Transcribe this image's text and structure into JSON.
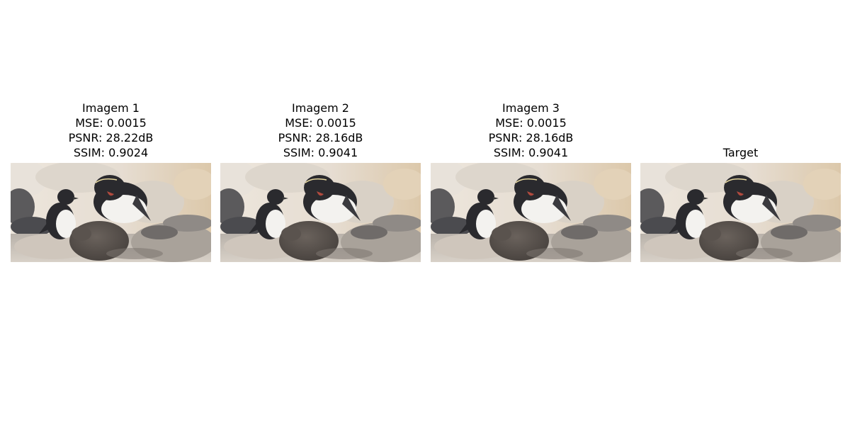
{
  "panels": [
    {
      "title": "Imagem 1",
      "metrics": [
        "MSE: 0.0015",
        "PSNR: 28.22dB",
        "SSIM: 0.9024"
      ]
    },
    {
      "title": "Imagem 2",
      "metrics": [
        "MSE: 0.0015",
        "PSNR: 28.16dB",
        "SSIM: 0.9041"
      ]
    },
    {
      "title": "Imagem 3",
      "metrics": [
        "MSE: 0.0015",
        "PSNR: 28.16dB",
        "SSIM: 0.9041"
      ]
    },
    {
      "title": "Target",
      "metrics": []
    }
  ],
  "colors": {
    "background": "#ffffff",
    "sand": "#dcc8aa",
    "rock_light": "#e8e2da",
    "rock_grey": "#a9a29a",
    "penguin_black": "#2a2a2e",
    "penguin_white": "#f3f2ef",
    "chick_brown": "#4a4440",
    "beak_red": "#b04a3e"
  }
}
